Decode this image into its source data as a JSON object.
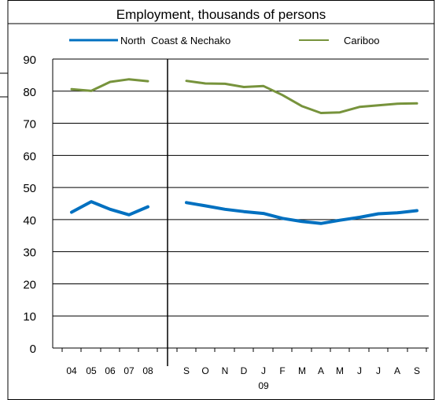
{
  "chart_data": {
    "type": "line",
    "title": "Employment, thousands of persons",
    "ylim": [
      0,
      90
    ],
    "y_ticks": [
      0,
      10,
      20,
      30,
      40,
      50,
      60,
      70,
      80,
      90
    ],
    "grid": true,
    "legend_placement": "top",
    "year_label": "09",
    "categories": [
      "04",
      "05",
      "06",
      "07",
      "08",
      "S",
      "O",
      "N",
      "D",
      "J",
      "F",
      "M",
      "A",
      "M",
      "J",
      "J",
      "A",
      "S"
    ],
    "series": [
      {
        "name": "North  Coast & Nechako",
        "color": "#0070C0",
        "segments": [
          {
            "start": 0,
            "values": [
              42.3,
              45.6,
              43.2,
              41.5,
              44.0
            ]
          },
          {
            "start": 5,
            "values": [
              45.3,
              44.3,
              43.2,
              42.5,
              41.9,
              40.4,
              39.4,
              38.8,
              39.8,
              40.7,
              41.8,
              42.1,
              42.8
            ]
          }
        ]
      },
      {
        "name": "Cariboo",
        "color": "#77933C",
        "segments": [
          {
            "start": 0,
            "values": [
              80.6,
              80.1,
              82.9,
              83.7,
              83.1
            ]
          },
          {
            "start": 5,
            "values": [
              83.2,
              82.4,
              82.3,
              81.3,
              81.6,
              78.8,
              75.3,
              73.2,
              73.4,
              75.1,
              75.6,
              76.1,
              76.2
            ]
          }
        ]
      }
    ]
  }
}
